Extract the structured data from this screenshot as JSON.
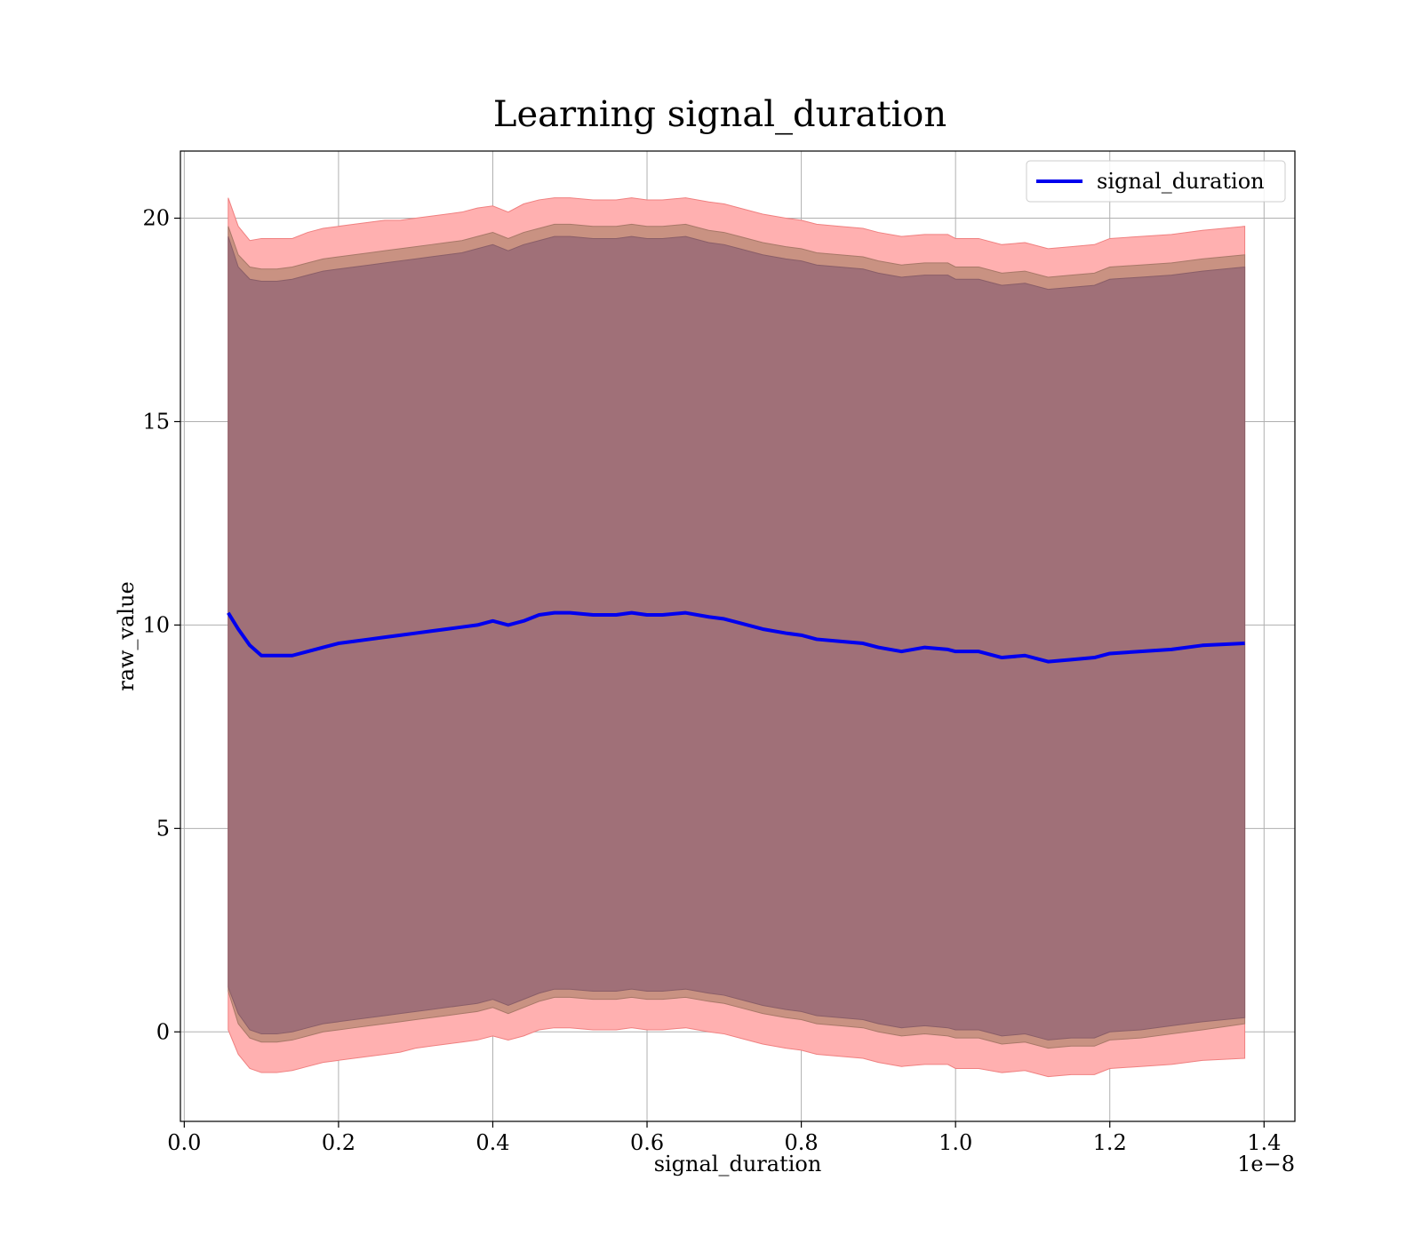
{
  "chart_data": {
    "type": "line",
    "title": "Learning signal_duration",
    "xlabel": "signal_duration",
    "ylabel": "raw_value",
    "x_offset_text": "1e−8",
    "xlim": [
      -0.005,
      1.44
    ],
    "ylim": [
      -2.2,
      21.65
    ],
    "x_ticks": [
      0.0,
      0.2,
      0.4,
      0.6,
      0.8,
      1.0,
      1.2,
      1.4
    ],
    "x_tick_labels": [
      "0.0",
      "0.2",
      "0.4",
      "0.6",
      "0.8",
      "1.0",
      "1.2",
      "1.4"
    ],
    "y_ticks": [
      0,
      5,
      10,
      15,
      20
    ],
    "y_tick_labels": [
      "0",
      "5",
      "10",
      "15",
      "20"
    ],
    "grid": true,
    "legend_position": "top-right",
    "colors": {
      "line": "#0000ee",
      "band_outer": "#ffb0b0",
      "band_middle": "#c99282",
      "band_inner": "#a07078"
    },
    "x": [
      0.057,
      0.07,
      0.085,
      0.1,
      0.12,
      0.14,
      0.16,
      0.18,
      0.2,
      0.22,
      0.24,
      0.26,
      0.28,
      0.3,
      0.32,
      0.34,
      0.36,
      0.38,
      0.4,
      0.42,
      0.44,
      0.46,
      0.48,
      0.5,
      0.53,
      0.56,
      0.58,
      0.6,
      0.62,
      0.65,
      0.68,
      0.7,
      0.72,
      0.75,
      0.78,
      0.8,
      0.82,
      0.85,
      0.88,
      0.9,
      0.93,
      0.96,
      0.99,
      1.0,
      1.03,
      1.06,
      1.09,
      1.12,
      1.15,
      1.18,
      1.2,
      1.24,
      1.28,
      1.32,
      1.375
    ],
    "series": [
      {
        "name": "signal_duration",
        "values": [
          10.3,
          9.9,
          9.5,
          9.25,
          9.25,
          9.25,
          9.35,
          9.45,
          9.55,
          9.6,
          9.65,
          9.7,
          9.75,
          9.8,
          9.85,
          9.9,
          9.95,
          10.0,
          10.1,
          10.0,
          10.1,
          10.25,
          10.3,
          10.3,
          10.25,
          10.25,
          10.3,
          10.25,
          10.25,
          10.3,
          10.2,
          10.15,
          10.05,
          9.9,
          9.8,
          9.75,
          9.65,
          9.6,
          9.55,
          9.45,
          9.35,
          9.45,
          9.4,
          9.35,
          9.35,
          9.2,
          9.25,
          9.1,
          9.15,
          9.2,
          9.3,
          9.35,
          9.4,
          9.5,
          9.55
        ]
      }
    ],
    "bands": [
      {
        "level": "outer",
        "upper": [
          20.5,
          19.8,
          19.45,
          19.5,
          19.5,
          19.5,
          19.65,
          19.75,
          19.8,
          19.85,
          19.9,
          19.95,
          19.95,
          20.0,
          20.05,
          20.1,
          20.15,
          20.25,
          20.3,
          20.15,
          20.35,
          20.45,
          20.5,
          20.5,
          20.45,
          20.45,
          20.5,
          20.45,
          20.45,
          20.5,
          20.4,
          20.35,
          20.25,
          20.1,
          20.0,
          19.95,
          19.85,
          19.8,
          19.75,
          19.65,
          19.55,
          19.6,
          19.6,
          19.5,
          19.5,
          19.35,
          19.4,
          19.25,
          19.3,
          19.35,
          19.5,
          19.55,
          19.6,
          19.7,
          19.8
        ],
        "lower": [
          0.05,
          -0.55,
          -0.9,
          -1.0,
          -1.0,
          -0.95,
          -0.85,
          -0.75,
          -0.7,
          -0.65,
          -0.6,
          -0.55,
          -0.5,
          -0.4,
          -0.35,
          -0.3,
          -0.25,
          -0.2,
          -0.1,
          -0.2,
          -0.1,
          0.05,
          0.1,
          0.1,
          0.05,
          0.05,
          0.1,
          0.05,
          0.05,
          0.1,
          0.0,
          -0.05,
          -0.15,
          -0.3,
          -0.4,
          -0.45,
          -0.55,
          -0.6,
          -0.65,
          -0.75,
          -0.85,
          -0.8,
          -0.8,
          -0.9,
          -0.9,
          -1.0,
          -0.95,
          -1.1,
          -1.05,
          -1.05,
          -0.9,
          -0.85,
          -0.8,
          -0.7,
          -0.65
        ]
      },
      {
        "level": "middle",
        "upper": [
          19.8,
          19.1,
          18.8,
          18.75,
          18.75,
          18.8,
          18.9,
          19.0,
          19.05,
          19.1,
          19.15,
          19.2,
          19.25,
          19.3,
          19.35,
          19.4,
          19.45,
          19.55,
          19.65,
          19.5,
          19.65,
          19.75,
          19.85,
          19.85,
          19.8,
          19.8,
          19.85,
          19.8,
          19.8,
          19.85,
          19.7,
          19.65,
          19.55,
          19.4,
          19.3,
          19.25,
          19.15,
          19.1,
          19.05,
          18.95,
          18.85,
          18.9,
          18.9,
          18.8,
          18.8,
          18.65,
          18.7,
          18.55,
          18.6,
          18.65,
          18.8,
          18.85,
          18.9,
          19.0,
          19.1
        ],
        "lower": [
          1.0,
          0.2,
          -0.15,
          -0.25,
          -0.25,
          -0.2,
          -0.1,
          0.0,
          0.05,
          0.1,
          0.15,
          0.2,
          0.25,
          0.3,
          0.35,
          0.4,
          0.45,
          0.5,
          0.6,
          0.45,
          0.6,
          0.75,
          0.85,
          0.85,
          0.8,
          0.8,
          0.85,
          0.8,
          0.8,
          0.85,
          0.75,
          0.7,
          0.6,
          0.45,
          0.35,
          0.3,
          0.2,
          0.15,
          0.1,
          0.0,
          -0.1,
          -0.05,
          -0.1,
          -0.15,
          -0.15,
          -0.3,
          -0.25,
          -0.4,
          -0.35,
          -0.35,
          -0.2,
          -0.15,
          -0.05,
          0.05,
          0.2
        ]
      },
      {
        "level": "inner",
        "upper": [
          19.55,
          18.8,
          18.5,
          18.45,
          18.45,
          18.5,
          18.6,
          18.7,
          18.75,
          18.8,
          18.85,
          18.9,
          18.95,
          19.0,
          19.05,
          19.1,
          19.15,
          19.25,
          19.35,
          19.2,
          19.35,
          19.45,
          19.55,
          19.55,
          19.5,
          19.5,
          19.55,
          19.5,
          19.5,
          19.55,
          19.4,
          19.35,
          19.25,
          19.1,
          19.0,
          18.95,
          18.85,
          18.8,
          18.75,
          18.65,
          18.55,
          18.6,
          18.6,
          18.5,
          18.5,
          18.35,
          18.4,
          18.25,
          18.3,
          18.35,
          18.5,
          18.55,
          18.6,
          18.7,
          18.8
        ],
        "lower": [
          1.1,
          0.45,
          0.05,
          -0.05,
          -0.05,
          0.0,
          0.1,
          0.2,
          0.25,
          0.3,
          0.35,
          0.4,
          0.45,
          0.5,
          0.55,
          0.6,
          0.65,
          0.7,
          0.8,
          0.65,
          0.8,
          0.95,
          1.05,
          1.05,
          1.0,
          1.0,
          1.05,
          1.0,
          1.0,
          1.05,
          0.95,
          0.9,
          0.8,
          0.65,
          0.55,
          0.5,
          0.4,
          0.35,
          0.3,
          0.2,
          0.1,
          0.15,
          0.1,
          0.05,
          0.05,
          -0.1,
          -0.05,
          -0.2,
          -0.15,
          -0.15,
          0.0,
          0.05,
          0.15,
          0.25,
          0.35
        ]
      }
    ]
  }
}
